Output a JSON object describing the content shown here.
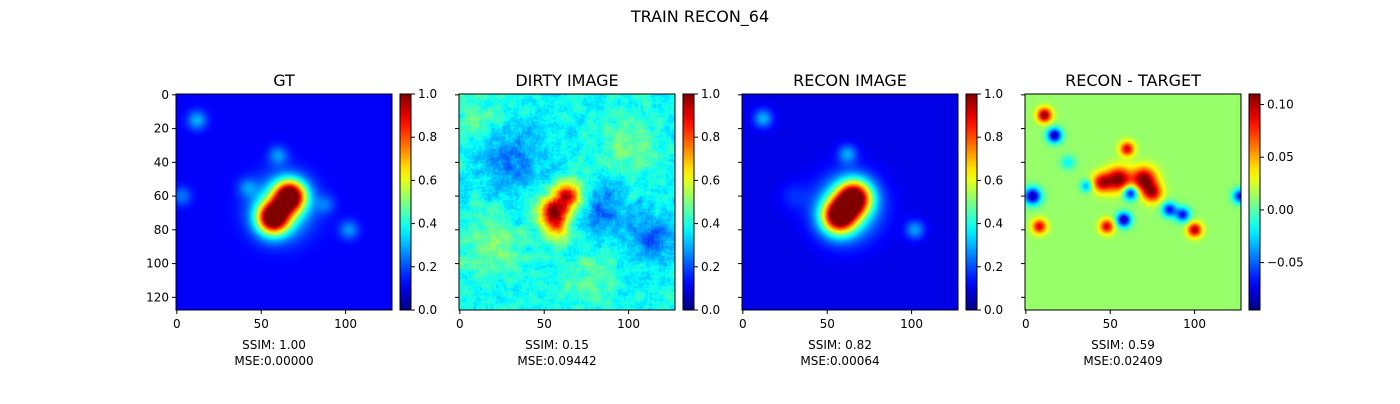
{
  "figure": {
    "title": "TRAIN RECON_64"
  },
  "chart_data": [
    {
      "type": "heatmap",
      "title": "GT",
      "colormap": "jet",
      "image_size": [
        128,
        128
      ],
      "xticks": [
        0,
        50,
        100
      ],
      "yticks": [
        0,
        20,
        40,
        60,
        80,
        100,
        120
      ],
      "clim": [
        0.0,
        1.0
      ],
      "colorbar_ticks": [
        "0.0",
        "0.2",
        "0.4",
        "0.6",
        "0.8",
        "1.0"
      ],
      "colorbar_values": [
        0,
        0.2,
        0.4,
        0.6,
        0.8,
        1.0
      ],
      "background": 0.12,
      "noise": 0.0,
      "blobs": [
        {
          "x": 57,
          "y": 73,
          "s": 6.5,
          "a": 0.9
        },
        {
          "x": 67,
          "y": 60,
          "s": 6.5,
          "a": 0.9
        },
        {
          "x": 62,
          "y": 67,
          "s": 12,
          "a": 0.3
        },
        {
          "x": 12,
          "y": 15,
          "s": 4,
          "a": 0.18
        },
        {
          "x": 60,
          "y": 36,
          "s": 4,
          "a": 0.15
        },
        {
          "x": 102,
          "y": 80,
          "s": 4,
          "a": 0.15
        },
        {
          "x": 42,
          "y": 55,
          "s": 4,
          "a": 0.12
        },
        {
          "x": 3,
          "y": 60,
          "s": 4,
          "a": 0.12
        },
        {
          "x": 88,
          "y": 65,
          "s": 4,
          "a": 0.1
        }
      ],
      "stats": [
        "SSIM: 1.00",
        "MSE:0.00000"
      ]
    },
    {
      "type": "heatmap",
      "title": "DIRTY IMAGE",
      "colormap": "jet",
      "image_size": [
        128,
        128
      ],
      "xticks": [
        0,
        50,
        100
      ],
      "yticks": [],
      "clim": [
        0.0,
        1.0
      ],
      "colorbar_ticks": [
        "0.0",
        "0.2",
        "0.4",
        "0.6",
        "0.8",
        "1.0"
      ],
      "colorbar_values": [
        0,
        0.2,
        0.4,
        0.6,
        0.8,
        1.0
      ],
      "background": 0.38,
      "noise": 0.09,
      "blobs": [
        {
          "x": 55,
          "y": 70,
          "s": 6,
          "a": 0.55
        },
        {
          "x": 64,
          "y": 60,
          "s": 6,
          "a": 0.5
        },
        {
          "x": 58,
          "y": 80,
          "s": 5,
          "a": 0.25
        },
        {
          "x": 30,
          "y": 40,
          "s": 12,
          "a": -0.15
        },
        {
          "x": 85,
          "y": 68,
          "s": 10,
          "a": -0.15
        },
        {
          "x": 115,
          "y": 85,
          "s": 10,
          "a": -0.15
        },
        {
          "x": 20,
          "y": 90,
          "s": 14,
          "a": 0.1
        },
        {
          "x": 100,
          "y": 30,
          "s": 12,
          "a": 0.1
        },
        {
          "x": 75,
          "y": 110,
          "s": 12,
          "a": 0.08
        },
        {
          "x": 10,
          "y": 15,
          "s": 8,
          "a": 0.1
        }
      ],
      "stats": [
        "SSIM: 0.15",
        "MSE:0.09442"
      ]
    },
    {
      "type": "heatmap",
      "title": "RECON IMAGE",
      "colormap": "jet",
      "image_size": [
        128,
        128
      ],
      "xticks": [
        0,
        50,
        100
      ],
      "yticks": [],
      "clim": [
        0.0,
        1.0
      ],
      "colorbar_ticks": [
        "0.0",
        "0.2",
        "0.4",
        "0.6",
        "0.8",
        "1.0"
      ],
      "colorbar_values": [
        0,
        0.2,
        0.4,
        0.6,
        0.8,
        1.0
      ],
      "background": 0.1,
      "noise": 0.0,
      "blobs": [
        {
          "x": 57,
          "y": 72,
          "s": 7,
          "a": 0.85
        },
        {
          "x": 66,
          "y": 61,
          "s": 7,
          "a": 0.85
        },
        {
          "x": 62,
          "y": 67,
          "s": 13,
          "a": 0.3
        },
        {
          "x": 12,
          "y": 14,
          "s": 4,
          "a": 0.2
        },
        {
          "x": 62,
          "y": 35,
          "s": 4,
          "a": 0.18
        },
        {
          "x": 102,
          "y": 80,
          "s": 4,
          "a": 0.18
        },
        {
          "x": 30,
          "y": 60,
          "s": 6,
          "a": 0.06
        }
      ],
      "stats": [
        "SSIM: 0.82",
        "MSE:0.00064"
      ]
    },
    {
      "type": "heatmap",
      "title": "RECON - TARGET",
      "colormap": "jet",
      "image_size": [
        128,
        128
      ],
      "xticks": [
        0,
        50,
        100
      ],
      "yticks": [],
      "clim": [
        -0.095,
        0.11
      ],
      "colorbar_ticks": [
        "−0.05",
        "0.00",
        "0.05",
        "0.10"
      ],
      "colorbar_values": [
        -0.05,
        0.0,
        0.05,
        0.1
      ],
      "background": 0.012,
      "noise": 0.0,
      "blobs": [
        {
          "x": 55,
          "y": 50,
          "s": 5,
          "a": 0.1
        },
        {
          "x": 70,
          "y": 50,
          "s": 5,
          "a": 0.1
        },
        {
          "x": 45,
          "y": 52,
          "s": 4,
          "a": 0.08
        },
        {
          "x": 75,
          "y": 58,
          "s": 4,
          "a": 0.08
        },
        {
          "x": 62,
          "y": 58,
          "s": 3,
          "a": -0.09
        },
        {
          "x": 60,
          "y": 32,
          "s": 3,
          "a": 0.08
        },
        {
          "x": 11,
          "y": 12,
          "s": 3,
          "a": 0.1
        },
        {
          "x": 17,
          "y": 24,
          "s": 3,
          "a": -0.1
        },
        {
          "x": 4,
          "y": 60,
          "s": 3.5,
          "a": -0.1
        },
        {
          "x": 8,
          "y": 78,
          "s": 3,
          "a": 0.08
        },
        {
          "x": 58,
          "y": 74,
          "s": 3,
          "a": -0.1
        },
        {
          "x": 48,
          "y": 78,
          "s": 3,
          "a": 0.08
        },
        {
          "x": 85,
          "y": 68,
          "s": 3,
          "a": -0.08
        },
        {
          "x": 93,
          "y": 71,
          "s": 3,
          "a": -0.08
        },
        {
          "x": 100,
          "y": 80,
          "s": 3,
          "a": 0.09
        },
        {
          "x": 127,
          "y": 60,
          "s": 3,
          "a": -0.08
        },
        {
          "x": 36,
          "y": 54,
          "s": 2.5,
          "a": -0.05
        },
        {
          "x": 25,
          "y": 40,
          "s": 3,
          "a": -0.03
        }
      ],
      "stats": [
        "SSIM: 0.59",
        "MSE:0.02409"
      ]
    }
  ]
}
